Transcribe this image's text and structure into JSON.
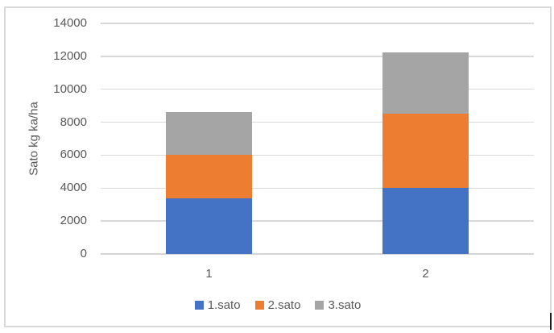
{
  "chart_data": {
    "type": "bar",
    "stacked": true,
    "title": "",
    "categories": [
      "1",
      "2"
    ],
    "series": [
      {
        "name": "1.sato",
        "color": "#4472C4",
        "values": [
          3400,
          4000
        ]
      },
      {
        "name": "2.sato",
        "color": "#ED7D31",
        "values": [
          2600,
          4500
        ]
      },
      {
        "name": "3.sato",
        "color": "#A5A5A5",
        "values": [
          2600,
          3750
        ]
      }
    ],
    "xlabel": "",
    "ylabel": "Sato kg ka/ha",
    "ylim": [
      0,
      14000
    ],
    "ytick_step": 2000,
    "yticks": [
      "0",
      "2000",
      "4000",
      "6000",
      "8000",
      "10000",
      "12000",
      "14000"
    ],
    "grid": true,
    "legend_position": "bottom"
  },
  "colors": {
    "series_blue": "#4472C4",
    "series_orange": "#ED7D31",
    "series_gray": "#A5A5A5",
    "gridline": "#D9D9D9",
    "chart_border": "#D9D9D9",
    "text": "#595959"
  }
}
